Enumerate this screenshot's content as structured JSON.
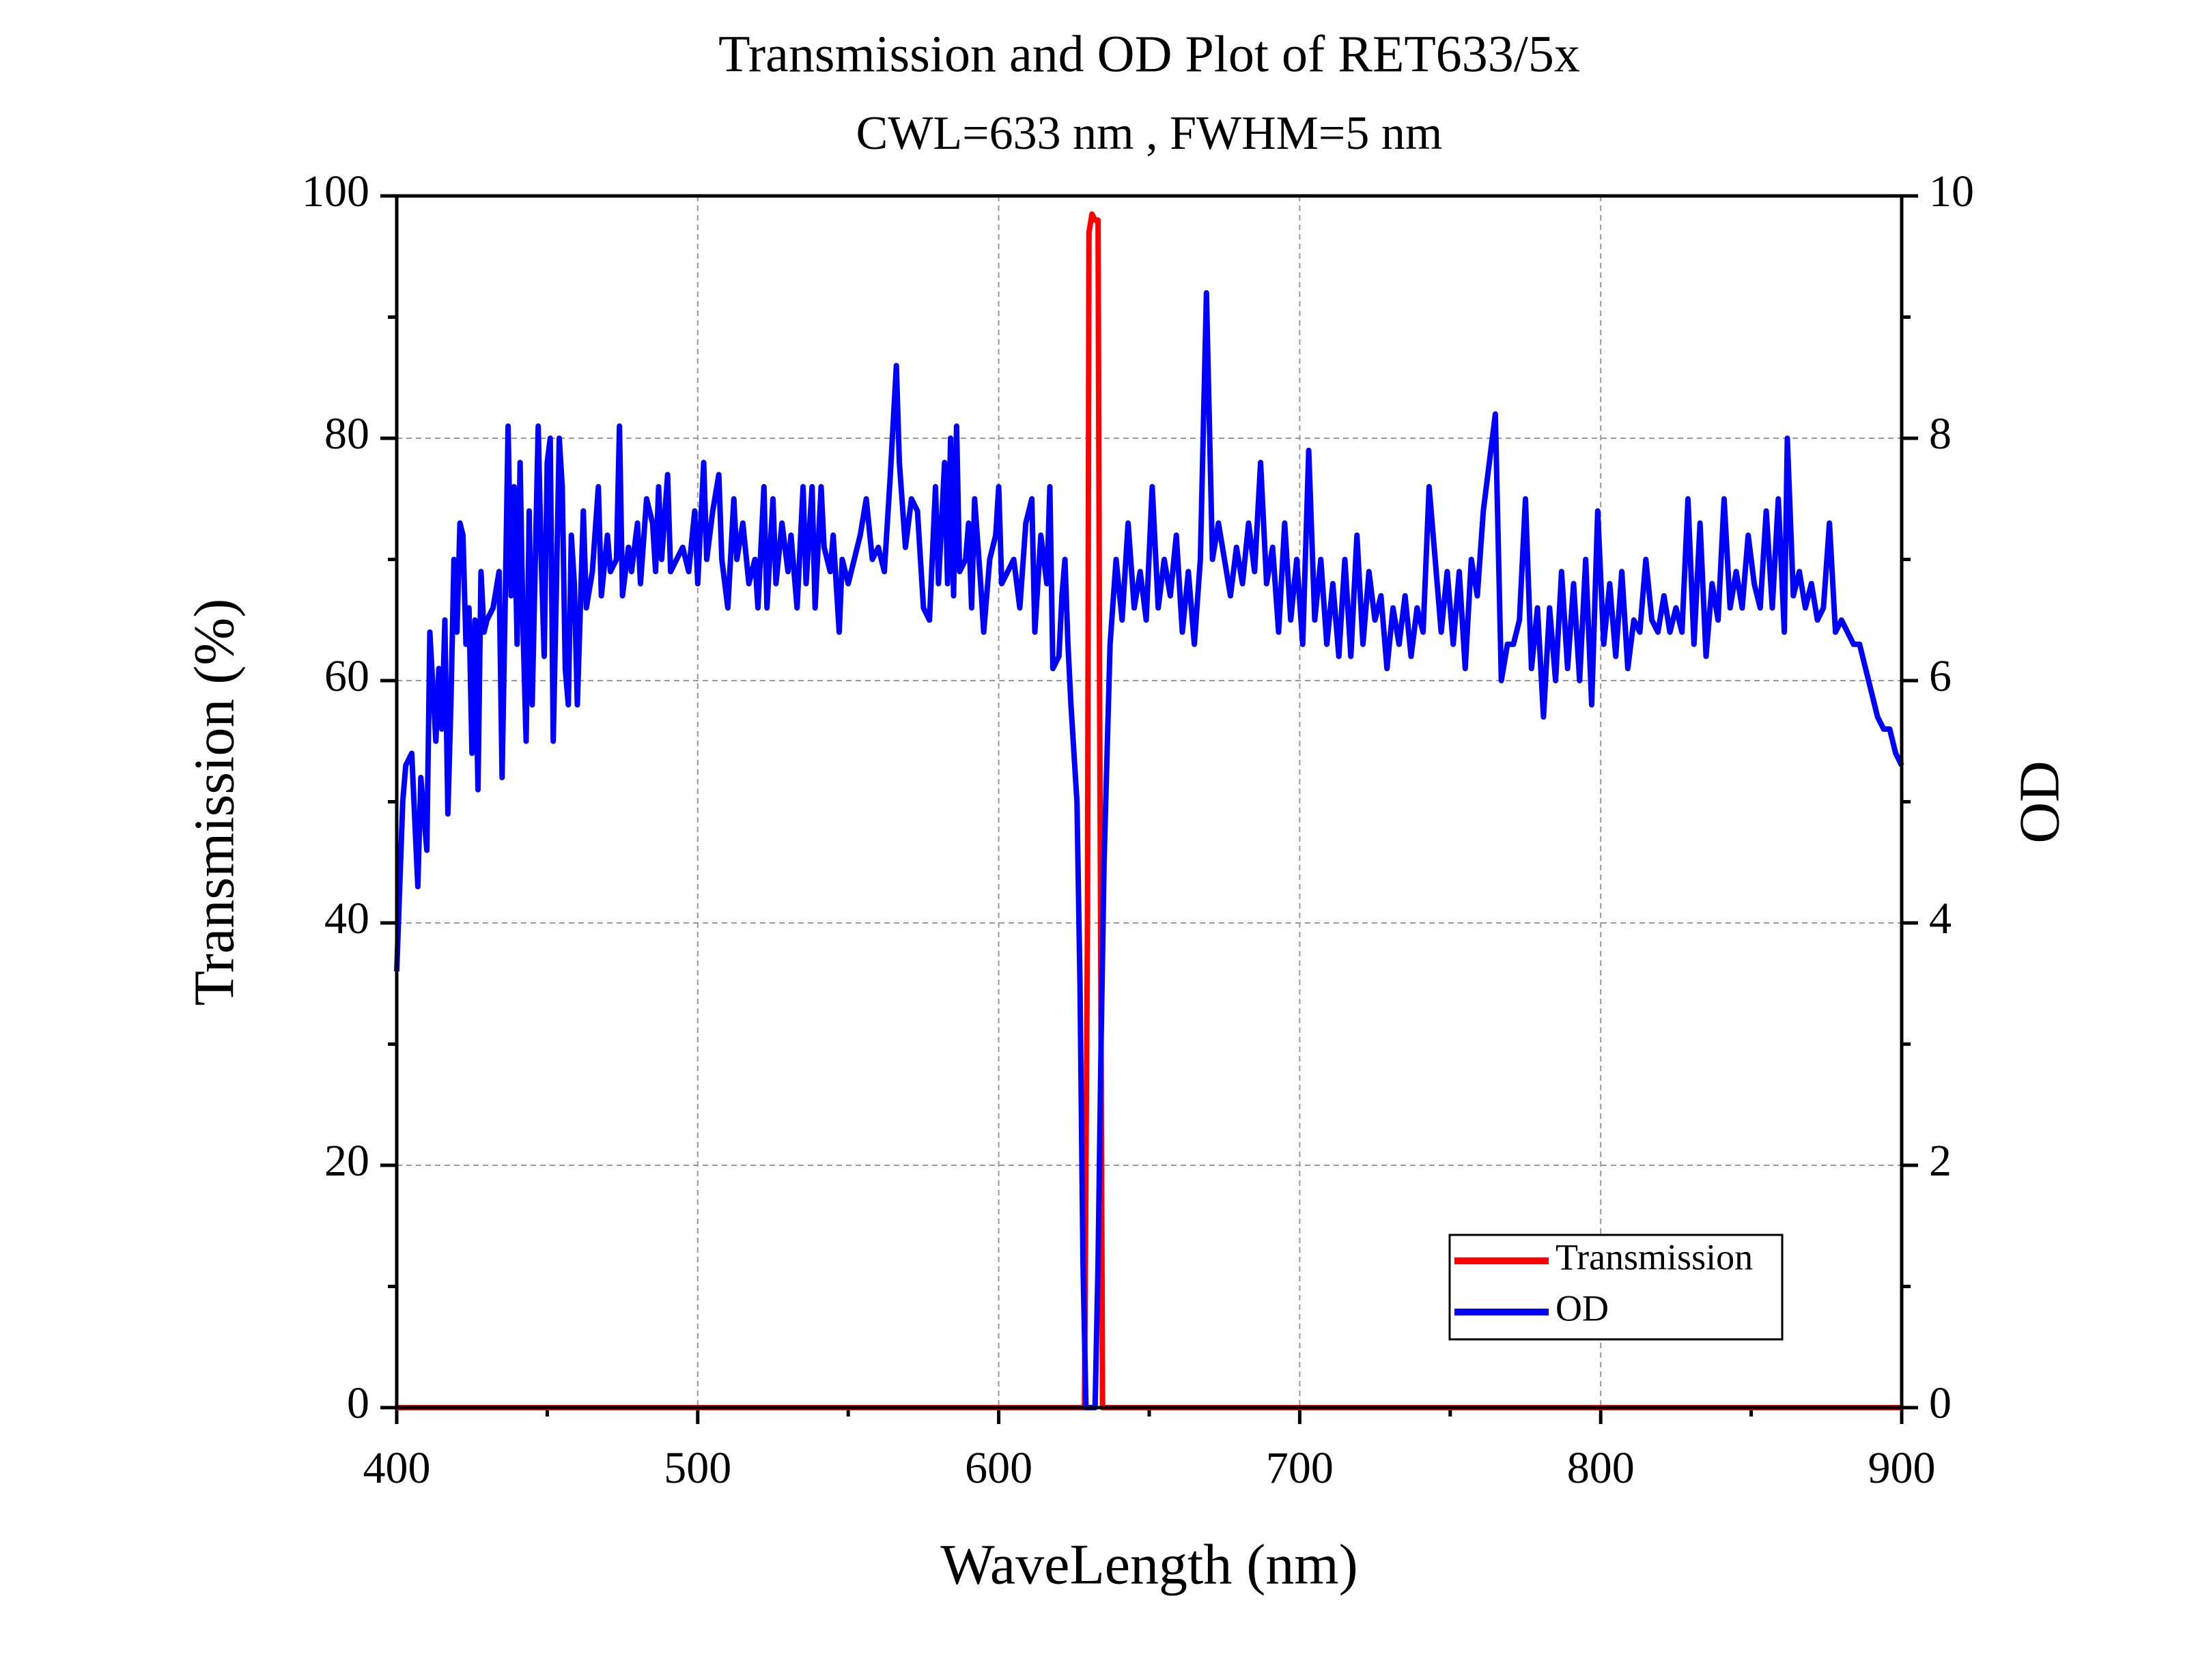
{
  "chart_data": {
    "type": "line",
    "title": "Transmission and OD Plot of RET633/5x",
    "subtitle": "CWL=633 nm , FWHM=5 nm",
    "x_label": "WaveLength (nm)",
    "y_label": "Transmission (%)",
    "y2_label": "OD",
    "xlim": [
      400,
      900
    ],
    "xticks": [
      400,
      500,
      600,
      700,
      800,
      900
    ],
    "xticks_minor": [
      450,
      550,
      650,
      750,
      850
    ],
    "ylim": [
      0,
      100
    ],
    "yticks": [
      0,
      20,
      40,
      60,
      80,
      100
    ],
    "yticks_minor": [
      10,
      30,
      50,
      70,
      90
    ],
    "y2lim": [
      0,
      10
    ],
    "y2ticks": [
      0,
      2,
      4,
      6,
      8,
      10
    ],
    "y2ticks_minor": [
      1,
      3,
      5,
      7,
      9
    ],
    "grid": true,
    "legend": "lower right",
    "series": [
      {
        "name": "Transmission",
        "color": "#ff0000",
        "x": [
          400,
          628.5,
          629.5,
          630,
          631,
          632,
          633,
          633.5,
          634.5,
          900
        ],
        "values": [
          0,
          0,
          40,
          97,
          98.5,
          98,
          98,
          60,
          0,
          0
        ]
      },
      {
        "name": "OD",
        "color": "#0000ff",
        "axis": "y2",
        "x": [
          400,
          402,
          403,
          405,
          407,
          408,
          410,
          411,
          413,
          414,
          415,
          416,
          417,
          418,
          419,
          420,
          421,
          422,
          423,
          424,
          425,
          426,
          427,
          428,
          429,
          430,
          432,
          434,
          435,
          436,
          437,
          438,
          439,
          440,
          441,
          442,
          443,
          444,
          445,
          447,
          448,
          449,
          450,
          451,
          452,
          453,
          454,
          455,
          456,
          457,
          458,
          459,
          460,
          462,
          463,
          465,
          467,
          468,
          470,
          471,
          473,
          474,
          475,
          477,
          478,
          480,
          481,
          483,
          485,
          486,
          487,
          488,
          490,
          491,
          493,
          495,
          497,
          499,
          500,
          502,
          503,
          505,
          507,
          508,
          510,
          512,
          513,
          515,
          517,
          519,
          520,
          522,
          523,
          525,
          526,
          528,
          530,
          531,
          533,
          535,
          536,
          538,
          539,
          541,
          542,
          544,
          545,
          547,
          548,
          550,
          552,
          554,
          556,
          558,
          560,
          562,
          564,
          566,
          567,
          569,
          571,
          573,
          575,
          577,
          579,
          580,
          582,
          583,
          584,
          585,
          586,
          587,
          589,
          590,
          591,
          592,
          594,
          595,
          597,
          599,
          600,
          601,
          603,
          605,
          607,
          609,
          611,
          612,
          614,
          616,
          617,
          618,
          620,
          621,
          622,
          623,
          624,
          626,
          627,
          628,
          629,
          631,
          632,
          633,
          634,
          635,
          637,
          639,
          641,
          643,
          645,
          647,
          649,
          651,
          653,
          655,
          657,
          659,
          661,
          663,
          665,
          667,
          669,
          671,
          673,
          675,
          677,
          679,
          681,
          683,
          685,
          687,
          689,
          691,
          693,
          695,
          697,
          699,
          701,
          703,
          705,
          707,
          709,
          711,
          713,
          715,
          717,
          719,
          721,
          723,
          725,
          727,
          729,
          731,
          733,
          735,
          737,
          739,
          741,
          743,
          745,
          747,
          749,
          751,
          753,
          755,
          757,
          759,
          761,
          763,
          765,
          767,
          769,
          771,
          773,
          775,
          777,
          779,
          781,
          783,
          785,
          787,
          789,
          791,
          793,
          795,
          797,
          799,
          801,
          803,
          805,
          807,
          809,
          811,
          813,
          815,
          817,
          819,
          821,
          823,
          825,
          827,
          829,
          831,
          833,
          835,
          837,
          839,
          841,
          843,
          845,
          847,
          849,
          851,
          853,
          855,
          857,
          859,
          861,
          862,
          864,
          866,
          868,
          870,
          872,
          874,
          876,
          878,
          880,
          882,
          884,
          886,
          888,
          890,
          892,
          894,
          896,
          898,
          900
        ],
        "values": [
          3.6,
          5.0,
          5.3,
          5.4,
          4.3,
          5.2,
          4.6,
          6.4,
          5.5,
          6.1,
          5.6,
          6.5,
          4.9,
          5.8,
          7.0,
          6.4,
          7.3,
          7.2,
          6.3,
          6.6,
          5.4,
          6.5,
          5.1,
          6.9,
          6.4,
          6.5,
          6.6,
          6.9,
          5.2,
          6.6,
          8.1,
          6.7,
          7.6,
          6.3,
          7.8,
          6.4,
          5.5,
          7.4,
          5.8,
          8.1,
          7.0,
          6.2,
          7.8,
          8.0,
          5.5,
          6.7,
          8.0,
          7.6,
          6.1,
          5.8,
          7.2,
          6.8,
          5.8,
          7.4,
          6.6,
          6.9,
          7.6,
          6.7,
          7.2,
          6.9,
          7.0,
          8.1,
          6.7,
          7.1,
          6.9,
          7.3,
          6.8,
          7.5,
          7.3,
          6.9,
          7.6,
          7.0,
          7.7,
          6.9,
          7.0,
          7.1,
          6.9,
          7.4,
          6.8,
          7.8,
          7.0,
          7.4,
          7.7,
          7.0,
          6.6,
          7.5,
          7.0,
          7.3,
          6.8,
          7.0,
          6.6,
          7.6,
          6.6,
          7.5,
          6.8,
          7.3,
          6.9,
          7.2,
          6.6,
          7.6,
          6.8,
          7.6,
          6.6,
          7.6,
          7.1,
          6.9,
          7.2,
          6.4,
          7.0,
          6.8,
          7.0,
          7.2,
          7.5,
          7.0,
          7.1,
          6.9,
          7.7,
          8.6,
          7.8,
          7.1,
          7.5,
          7.4,
          6.6,
          6.5,
          7.6,
          6.8,
          7.8,
          6.8,
          8.0,
          6.7,
          8.1,
          6.9,
          7.0,
          7.3,
          6.6,
          7.5,
          6.8,
          6.4,
          7.0,
          7.2,
          7.6,
          6.8,
          6.9,
          7.0,
          6.6,
          7.3,
          7.5,
          6.4,
          7.2,
          6.8,
          7.6,
          6.1,
          6.2,
          6.7,
          7.0,
          6.3,
          5.8,
          5.0,
          3.5,
          1.2,
          0,
          0,
          0,
          1.2,
          3.0,
          4.5,
          6.3,
          7.0,
          6.5,
          7.3,
          6.6,
          6.9,
          6.5,
          7.6,
          6.6,
          7.0,
          6.7,
          7.2,
          6.4,
          6.9,
          6.3,
          7.0,
          9.2,
          7.0,
          7.3,
          7.0,
          6.7,
          7.1,
          6.8,
          7.3,
          6.9,
          7.8,
          6.8,
          7.1,
          6.4,
          7.3,
          6.5,
          7.0,
          6.3,
          7.9,
          6.5,
          7.0,
          6.3,
          6.8,
          6.2,
          7.0,
          6.2,
          7.2,
          6.3,
          6.9,
          6.5,
          6.7,
          6.1,
          6.6,
          6.3,
          6.7,
          6.2,
          6.6,
          6.4,
          7.6,
          7.0,
          6.4,
          6.9,
          6.3,
          6.9,
          6.1,
          7.0,
          6.7,
          7.4,
          7.8,
          8.2,
          6.0,
          6.3,
          6.3,
          6.5,
          7.5,
          6.1,
          6.6,
          5.7,
          6.6,
          6.0,
          6.9,
          6.1,
          6.8,
          6.0,
          7.0,
          5.8,
          7.4,
          6.3,
          6.8,
          6.2,
          6.9,
          6.1,
          6.5,
          6.4,
          7.0,
          6.5,
          6.4,
          6.7,
          6.4,
          6.6,
          6.4,
          7.5,
          6.3,
          7.3,
          6.2,
          6.8,
          6.5,
          7.5,
          6.6,
          6.9,
          6.6,
          7.2,
          6.8,
          6.6,
          7.4,
          6.6,
          7.5,
          6.4,
          8.0,
          6.7,
          6.9,
          6.6,
          6.8,
          6.5,
          6.6,
          7.3,
          6.4,
          6.5,
          6.4,
          6.3,
          6.3,
          6.1,
          5.9,
          5.7,
          5.6,
          5.6,
          5.4,
          5.3
        ]
      }
    ]
  }
}
